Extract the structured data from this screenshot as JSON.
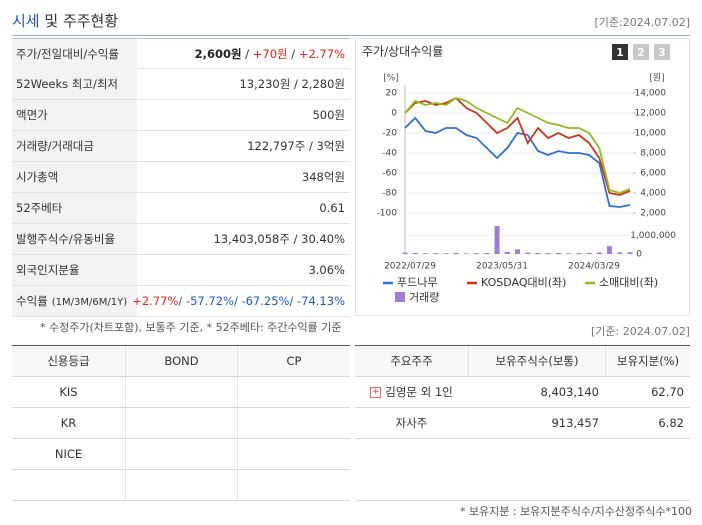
{
  "header": {
    "title_main": "시세",
    "title_rest": "및 주주현황",
    "date": "[기준:2024.07.02]"
  },
  "quote_table": {
    "rows": [
      {
        "label": "주가/전일대비/수익률",
        "parts": [
          "2,600원",
          " / ",
          "+70원",
          " / ",
          "+2.77%"
        ]
      },
      {
        "label": "52Weeks 최고/최저",
        "parts": [
          "13,230원 / 2,280원"
        ]
      },
      {
        "label": "액면가",
        "parts": [
          "500원"
        ]
      },
      {
        "label": "거래량/거래대금",
        "parts": [
          "122,797주 / 3억원"
        ]
      },
      {
        "label": "시가총액",
        "parts": [
          "348억원"
        ]
      },
      {
        "label": "52주베타",
        "parts": [
          "0.61"
        ]
      },
      {
        "label": "발행주식수/유동비율",
        "parts": [
          "13,403,058주 / 30.40%"
        ]
      },
      {
        "label": "외국인지분율",
        "parts": [
          "3.06%"
        ]
      },
      {
        "label": "수익률",
        "sub": "(1M/3M/6M/1Y)",
        "parts": [
          "+2.77%",
          "/ -57.72%",
          "/ -67.25%",
          "/ -74.13%"
        ]
      }
    ],
    "note": "* 수정주가(차트포함), 보통주 기준, * 52주베타: 주간수익률 기준"
  },
  "chart_data": {
    "type": "line",
    "title": "주가/상대수익률",
    "buttons": [
      "1",
      "2",
      "3"
    ],
    "y_unit": "[%]",
    "y2_unit": "[원]",
    "categories": [
      "2022/07/29",
      null,
      null,
      null,
      null,
      null,
      null,
      null,
      null,
      "2023/05/31",
      null,
      null,
      null,
      null,
      null,
      null,
      null,
      null,
      "2024/03/29",
      null,
      null,
      null,
      null
    ],
    "ylim": [
      -100,
      20
    ],
    "yticks": [
      20,
      0,
      -20,
      -40,
      -60,
      -80,
      -100
    ],
    "y2lim": [
      2000,
      14000
    ],
    "y2ticks": [
      {
        "value": 14000,
        "label": "14,000"
      },
      {
        "value": 12000,
        "label": "12,000"
      },
      {
        "value": 10000,
        "label": "10,000"
      },
      {
        "value": 8000,
        "label": "8,000"
      },
      {
        "value": 6000,
        "label": "6,000"
      },
      {
        "value": 4000,
        "label": "4,000"
      },
      {
        "value": 2000,
        "label": "2,000"
      }
    ],
    "series": [
      {
        "name": "푸드나무",
        "color": "#2f6fd6",
        "values": [
          -15,
          -5,
          -18,
          -20,
          -15,
          -15,
          -22,
          -25,
          -35,
          -45,
          -35,
          -20,
          -22,
          -38,
          -42,
          -38,
          -40,
          -40,
          -42,
          -50,
          -93,
          -94,
          -92
        ]
      },
      {
        "name": "KOSDAQ대비(좌)",
        "color": "#c8341c",
        "values": [
          0,
          10,
          12,
          8,
          10,
          15,
          5,
          0,
          -10,
          -20,
          -15,
          -5,
          -30,
          -15,
          -25,
          -20,
          -25,
          -22,
          -30,
          -45,
          -80,
          -82,
          -78
        ]
      },
      {
        "name": "소매대비(좌)",
        "color": "#8fbc1e",
        "values": [
          0,
          12,
          8,
          10,
          8,
          15,
          12,
          5,
          0,
          -5,
          -10,
          5,
          0,
          -5,
          -10,
          -12,
          -15,
          -15,
          -20,
          -35,
          -77,
          -80,
          -76
        ]
      }
    ],
    "volume": {
      "name": "거래량",
      "color": "#9b7fd4",
      "lim": [
        0,
        1500000
      ],
      "ticks": [
        {
          "value": 1000000,
          "label": "1,000,000"
        },
        0
      ],
      "values": [
        80000,
        60000,
        40000,
        50000,
        40000,
        60000,
        30000,
        40000,
        50000,
        1500000,
        120000,
        250000,
        80000,
        60000,
        50000,
        60000,
        40000,
        50000,
        60000,
        80000,
        420000,
        90000,
        100000
      ]
    }
  },
  "credit_table": {
    "header": [
      "신용등급",
      "BOND",
      "CP"
    ],
    "rows": [
      [
        "KIS",
        "",
        ""
      ],
      [
        "KR",
        "",
        ""
      ],
      [
        "NICE",
        "",
        ""
      ],
      [
        "",
        "",
        ""
      ]
    ]
  },
  "holder_table": {
    "date": "[기준: 2024.07.02]",
    "header": [
      "주요주주",
      "보유주식수(보통)",
      "보유지분(%)"
    ],
    "rows": [
      [
        "김영문 외 1인",
        "8,403,140",
        "62.70"
      ],
      [
        "자사주",
        "913,457",
        "6.82"
      ]
    ],
    "note": "* 보유지분 : 보유지분주식수/지수산정주식수*100"
  }
}
